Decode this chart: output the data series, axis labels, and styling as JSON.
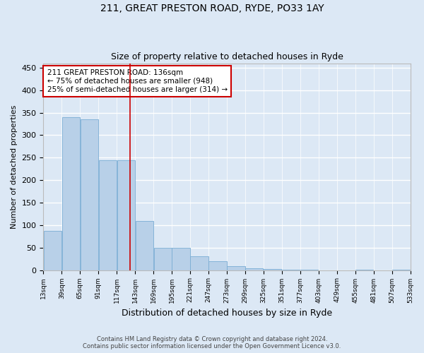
{
  "title_line1": "211, GREAT PRESTON ROAD, RYDE, PO33 1AY",
  "title_line2": "Size of property relative to detached houses in Ryde",
  "xlabel": "Distribution of detached houses by size in Ryde",
  "ylabel": "Number of detached properties",
  "bar_color": "#b8d0e8",
  "bar_edge_color": "#7aadd4",
  "bg_color": "#dce8f5",
  "fig_bg_color": "#dce8f5",
  "grid_color": "#ffffff",
  "bin_starts": [
    13,
    39,
    65,
    91,
    117,
    143,
    169,
    195,
    221,
    247,
    273,
    299,
    325,
    351,
    377,
    403,
    429,
    455,
    481,
    507
  ],
  "bin_width": 26,
  "bar_heights": [
    88,
    340,
    335,
    245,
    245,
    109,
    50,
    50,
    30,
    20,
    9,
    4,
    2,
    1,
    1,
    0,
    0,
    1,
    0,
    1
  ],
  "property_size": 136,
  "annotation_line1": "211 GREAT PRESTON ROAD: 136sqm",
  "annotation_line2": "← 75% of detached houses are smaller (948)",
  "annotation_line3": "25% of semi-detached houses are larger (314) →",
  "vline_color": "#cc0000",
  "annotation_box_color": "#ffffff",
  "annotation_box_edge": "#cc0000",
  "ylim": [
    0,
    460
  ],
  "yticks": [
    0,
    50,
    100,
    150,
    200,
    250,
    300,
    350,
    400,
    450
  ],
  "footer_line1": "Contains HM Land Registry data © Crown copyright and database right 2024.",
  "footer_line2": "Contains public sector information licensed under the Open Government Licence v3.0.",
  "tick_labels": [
    "13sqm",
    "39sqm",
    "65sqm",
    "91sqm",
    "117sqm",
    "143sqm",
    "169sqm",
    "195sqm",
    "221sqm",
    "247sqm",
    "273sqm",
    "299sqm",
    "325sqm",
    "351sqm",
    "377sqm",
    "403sqm",
    "429sqm",
    "455sqm",
    "481sqm",
    "507sqm",
    "533sqm"
  ]
}
